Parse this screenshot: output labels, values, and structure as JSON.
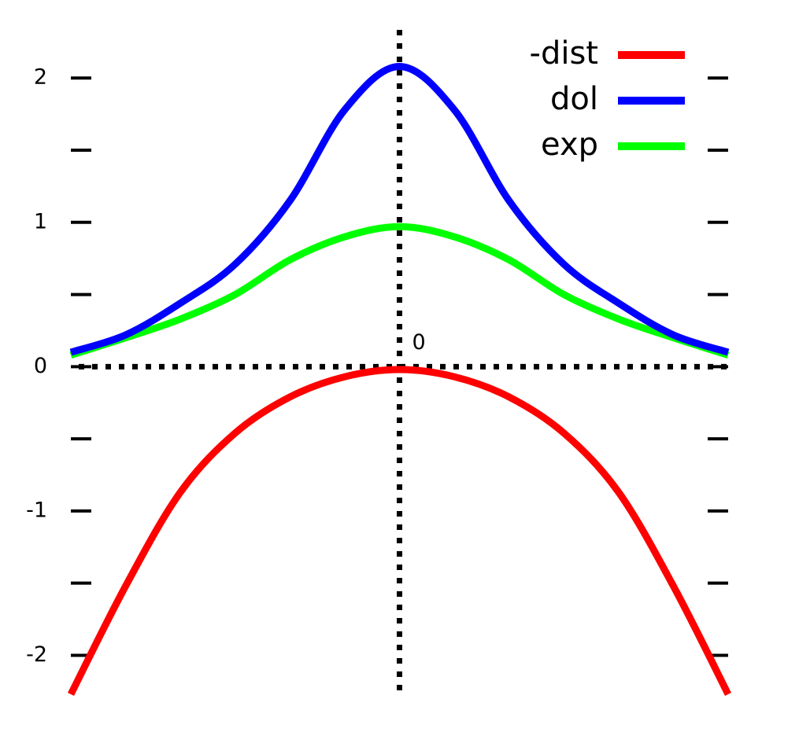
{
  "chart_data": {
    "type": "line",
    "x": [
      -1.5,
      -1.25,
      -1,
      -0.75,
      -0.5,
      -0.25,
      0,
      0.25,
      0.5,
      0.75,
      1,
      1.25,
      1.5
    ],
    "series": [
      {
        "name": "-dist",
        "color": "#ff0000",
        "values": [
          -2.27,
          -1.52,
          -0.87,
          -0.46,
          -0.21,
          -0.07,
          -0.02,
          -0.07,
          -0.21,
          -0.46,
          -0.87,
          -1.52,
          -2.27
        ]
      },
      {
        "name": "dol",
        "color": "#0000ff",
        "values": [
          0.1,
          0.22,
          0.44,
          0.71,
          1.15,
          1.78,
          2.08,
          1.78,
          1.15,
          0.71,
          0.44,
          0.22,
          0.1
        ]
      },
      {
        "name": "exp",
        "color": "#00ff00",
        "values": [
          0.08,
          0.2,
          0.33,
          0.5,
          0.74,
          0.9,
          0.97,
          0.9,
          0.74,
          0.5,
          0.33,
          0.2,
          0.08
        ]
      }
    ],
    "xlim": [
      -1.5,
      1.5
    ],
    "xticks": [
      0
    ],
    "ylim": [
      -2.27,
      2.35
    ],
    "yticks": [
      -2,
      -1,
      0,
      1,
      2
    ],
    "yminorticks": [
      -1.5,
      -0.5,
      0.5,
      1.5
    ],
    "legend": "top-right"
  }
}
